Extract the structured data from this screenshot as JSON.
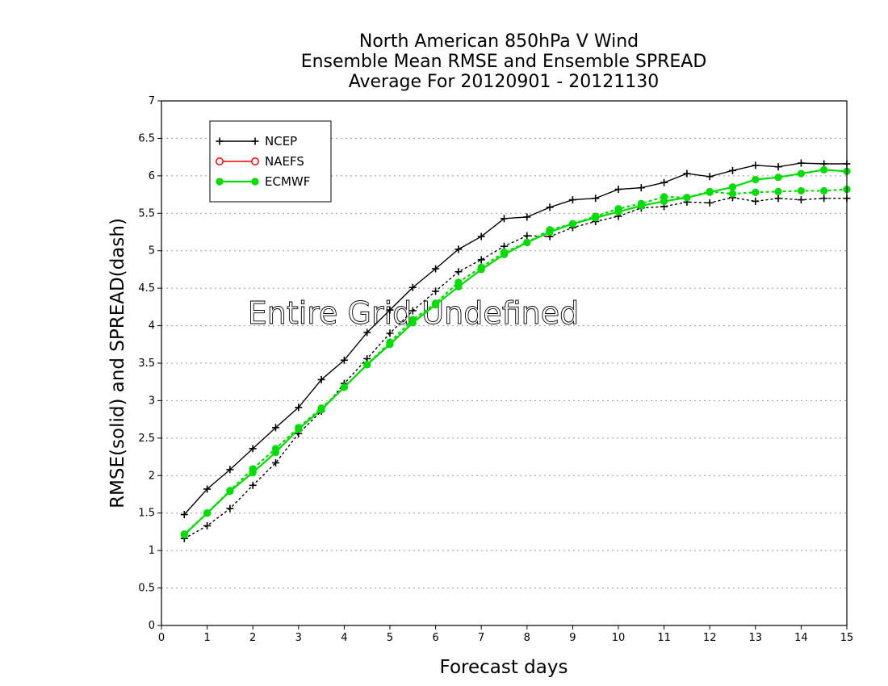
{
  "chart_data": {
    "type": "line",
    "title": [
      "North American 850hPa V Wind",
      "Ensemble Mean RMSE and Ensemble SPREAD",
      "Average For 20120901 - 20121130"
    ],
    "xlabel": "Forecast days",
    "ylabel": "RMSE(solid) and SPREAD(dash)",
    "xlim": [
      0,
      15
    ],
    "ylim": [
      0,
      7
    ],
    "xticks": [
      0,
      1,
      2,
      3,
      4,
      5,
      6,
      7,
      8,
      9,
      10,
      11,
      12,
      13,
      14,
      15
    ],
    "yticks": [
      "0",
      "0.5",
      "1",
      "1.5",
      "2",
      "2.5",
      "3",
      "3.5",
      "4",
      "4.5",
      "5",
      "5.5",
      "6",
      "6.5",
      "7"
    ],
    "grid": "horizontal dotted",
    "legend_position": "top-left",
    "annotation": "Entire Grid Undefined",
    "x": [
      0.5,
      1,
      1.5,
      2,
      2.5,
      3,
      3.5,
      4,
      4.5,
      5,
      5.5,
      6,
      6.5,
      7,
      7.5,
      8,
      8.5,
      9,
      9.5,
      10,
      10.5,
      11,
      11.5,
      12,
      12.5,
      13,
      13.5,
      14,
      14.5,
      15
    ],
    "series": [
      {
        "name": "NCEP",
        "color": "#000000",
        "marker": "plus",
        "rmse": [
          1.48,
          1.82,
          2.08,
          2.36,
          2.64,
          2.91,
          3.28,
          3.54,
          3.91,
          4.21,
          4.51,
          4.76,
          5.02,
          5.19,
          5.43,
          5.45,
          5.58,
          5.68,
          5.7,
          5.82,
          5.84,
          5.91,
          6.03,
          5.99,
          6.07,
          6.14,
          6.12,
          6.17,
          6.16,
          6.16
        ],
        "spread": [
          1.16,
          1.33,
          1.56,
          1.87,
          2.17,
          2.56,
          2.86,
          3.23,
          3.56,
          3.9,
          4.2,
          4.46,
          4.72,
          4.88,
          5.06,
          5.2,
          5.19,
          5.31,
          5.39,
          5.46,
          5.57,
          5.59,
          5.65,
          5.64,
          5.71,
          5.66,
          5.7,
          5.68,
          5.7,
          5.7
        ]
      },
      {
        "name": "NAEFS",
        "color": "#ff0000",
        "marker": "open-circle",
        "rmse": [],
        "spread": []
      },
      {
        "name": "ECMWF",
        "color": "#00dd00",
        "marker": "filled-circle",
        "rmse": [
          1.21,
          1.5,
          1.79,
          2.04,
          2.31,
          2.62,
          2.88,
          3.18,
          3.48,
          3.75,
          4.04,
          4.28,
          4.52,
          4.75,
          4.95,
          5.11,
          5.25,
          5.36,
          5.44,
          5.52,
          5.6,
          5.66,
          5.71,
          5.78,
          5.85,
          5.95,
          5.98,
          6.03,
          6.08,
          6.06
        ],
        "spread": [
          1.22,
          1.5,
          1.8,
          2.09,
          2.36,
          2.64,
          2.9,
          3.18,
          3.48,
          3.78,
          4.08,
          4.3,
          4.58,
          4.78,
          4.98,
          5.11,
          5.28,
          5.36,
          5.46,
          5.56,
          5.63,
          5.72,
          5.71,
          5.79,
          5.76,
          5.78,
          5.79,
          5.8,
          5.8,
          5.82
        ]
      }
    ]
  }
}
